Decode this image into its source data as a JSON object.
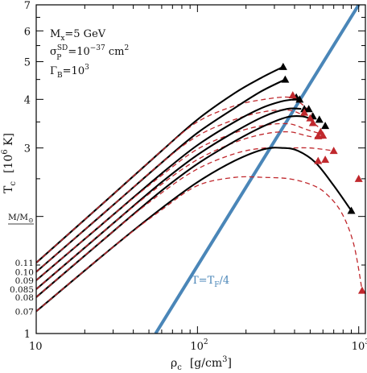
{
  "chart_data": {
    "type": "line",
    "xscale": "log",
    "yscale": "log",
    "xlim": [
      10,
      1100
    ],
    "ylim": [
      1,
      7
    ],
    "xticks": [
      10,
      100,
      1000
    ],
    "xtick_labels": [
      "10",
      "10",
      "10"
    ],
    "xtick_exps": [
      "",
      "2",
      "3"
    ],
    "yticks": [
      1,
      2,
      3,
      4,
      5,
      6,
      7
    ],
    "ytick_labels": [
      "1",
      "",
      "3",
      "4",
      "5",
      "6",
      "7"
    ],
    "xlabel": "ρ",
    "xlabel_sub": "c",
    "xlabel_unit": "[g/cm",
    "xlabel_unit_sup": "3",
    "xlabel_unit_end": "]",
    "ylabel": "T",
    "ylabel_sub": "c",
    "ylabel_unit": "[10",
    "ylabel_unit_sup": "6",
    "ylabel_unit_end": " K]",
    "annotations": [
      {
        "base": "M",
        "sub": "x",
        "rest": "=5 GeV"
      },
      {
        "base": "σ",
        "sup": "SD",
        "sub": "P",
        "rest": "=10",
        "exp": "−37",
        "tail": " cm",
        "tail_sup": "2"
      },
      {
        "base": "Γ",
        "sub": "B",
        "rest": "=10",
        "exp": "3"
      }
    ],
    "mass_header": {
      "base": "M/M",
      "sub": "⊙"
    },
    "mass_labels": [
      "0.11",
      "0.10",
      "0.09",
      "0.085",
      "0.08",
      "0.07"
    ],
    "fermi_line": {
      "label": "T=T",
      "label_sub": "F",
      "label_end": "/4",
      "x": [
        55,
        1000
      ],
      "y": [
        1.0,
        7.0
      ],
      "color": "#4a86b8"
    },
    "series": [
      {
        "name": "0.11",
        "style": "solid",
        "color": "#000000",
        "x": [
          10,
          30,
          60,
          100,
          170,
          250,
          340
        ],
        "y": [
          1.52,
          2.28,
          2.95,
          3.55,
          4.15,
          4.55,
          4.85
        ]
      },
      {
        "name": "0.11",
        "style": "dashed",
        "color": "#c0282d",
        "x": [
          10,
          30,
          60,
          100,
          170,
          260,
          370,
          440,
          520
        ],
        "y": [
          1.52,
          2.28,
          2.95,
          3.5,
          3.85,
          4.0,
          4.05,
          3.9,
          3.65
        ]
      },
      {
        "name": "0.10",
        "style": "solid",
        "color": "#000000",
        "x": [
          10,
          30,
          60,
          100,
          170,
          250,
          350
        ],
        "y": [
          1.44,
          2.14,
          2.75,
          3.28,
          3.8,
          4.2,
          4.5
        ]
      },
      {
        "name": "0.10",
        "style": "dashed",
        "color": "#c0282d",
        "x": [
          10,
          30,
          60,
          100,
          170,
          260,
          370,
          460,
          560
        ],
        "y": [
          1.44,
          2.14,
          2.75,
          3.22,
          3.55,
          3.72,
          3.75,
          3.62,
          3.4
        ]
      },
      {
        "name": "0.09",
        "style": "solid",
        "color": "#000000",
        "x": [
          10,
          30,
          60,
          100,
          170,
          250,
          330,
          400
        ],
        "y": [
          1.37,
          2.02,
          2.58,
          3.05,
          3.5,
          3.8,
          3.95,
          4.0
        ]
      },
      {
        "name": "0.09",
        "style": "dashed",
        "color": "#c0282d",
        "x": [
          10,
          30,
          60,
          100,
          170,
          260,
          370,
          470,
          600
        ],
        "y": [
          1.37,
          2.02,
          2.55,
          2.98,
          3.28,
          3.43,
          3.46,
          3.35,
          3.25
        ]
      },
      {
        "name": "0.085",
        "style": "solid",
        "color": "#000000",
        "x": [
          10,
          30,
          60,
          100,
          170,
          260,
          360,
          440
        ],
        "y": [
          1.3,
          1.92,
          2.45,
          2.88,
          3.3,
          3.62,
          3.78,
          3.78
        ]
      },
      {
        "name": "0.085",
        "style": "dashed",
        "color": "#c0282d",
        "x": [
          10,
          30,
          60,
          100,
          170,
          260,
          370,
          480,
          600
        ],
        "y": [
          1.3,
          1.92,
          2.42,
          2.8,
          3.1,
          3.26,
          3.3,
          3.22,
          3.17
        ]
      },
      {
        "name": "0.08",
        "style": "solid",
        "color": "#000000",
        "x": [
          10,
          30,
          60,
          100,
          170,
          260,
          360,
          440,
          490
        ],
        "y": [
          1.24,
          1.83,
          2.33,
          2.73,
          3.12,
          3.42,
          3.6,
          3.62,
          3.58
        ]
      },
      {
        "name": "0.08",
        "style": "dashed",
        "color": "#c0282d",
        "x": [
          10,
          30,
          60,
          100,
          170,
          260,
          370,
          500,
          700
        ],
        "y": [
          1.24,
          1.83,
          2.3,
          2.65,
          2.9,
          3.0,
          3.0,
          3.0,
          2.95
        ]
      },
      {
        "name": "0.07",
        "style": "solid",
        "color": "#000000",
        "x": [
          10,
          30,
          60,
          100,
          170,
          260,
          340,
          420,
          540,
          700,
          900
        ],
        "y": [
          1.14,
          1.67,
          2.1,
          2.45,
          2.78,
          2.98,
          3.0,
          2.95,
          2.75,
          2.4,
          2.07
        ]
      },
      {
        "name": "0.07",
        "style": "dashed",
        "color": "#c0282d",
        "x": [
          10,
          30,
          60,
          100,
          170,
          260,
          370,
          500,
          620,
          780,
          930,
          1050
        ],
        "y": [
          1.14,
          1.67,
          2.08,
          2.4,
          2.52,
          2.52,
          2.5,
          2.42,
          2.3,
          2.05,
          1.7,
          1.29
        ]
      }
    ],
    "end_markers": {
      "black": {
        "x": [
          340,
          350,
          410,
          430,
          460,
          490,
          520,
          570,
          620,
          900
        ],
        "y": [
          4.85,
          4.5,
          4.05,
          4.0,
          3.78,
          3.78,
          3.62,
          3.55,
          3.42,
          2.07
        ]
      },
      "red": {
        "x": [
          390,
          460,
          500,
          520,
          560,
          580,
          600,
          620,
          700,
          1000,
          1050,
          560
        ],
        "y": [
          4.1,
          3.7,
          3.58,
          3.48,
          3.22,
          3.3,
          3.23,
          2.8,
          2.95,
          2.5,
          1.29,
          2.78
        ]
      }
    }
  }
}
